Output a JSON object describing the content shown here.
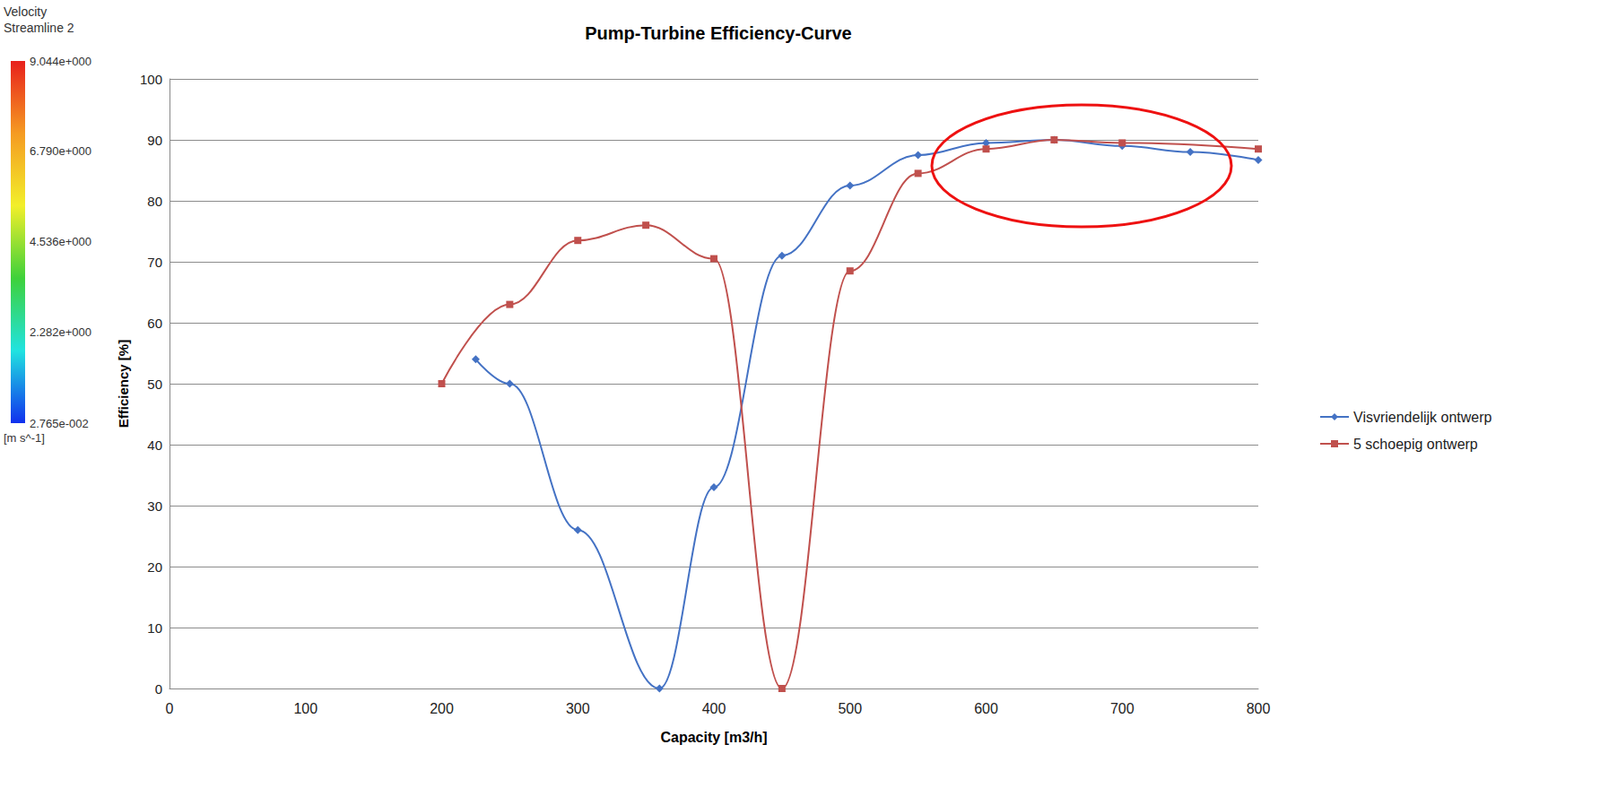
{
  "chart_data": {
    "type": "line",
    "title": "Pump-Turbine Efficiency-Curve",
    "x_label": "Capacity [m3/h]",
    "y_label": "Efficiency [%]",
    "xlim": [
      0,
      800
    ],
    "xticks": [
      0,
      100,
      200,
      300,
      400,
      500,
      600,
      700,
      800
    ],
    "ylim": [
      0,
      100
    ],
    "yticks": [
      0,
      10,
      20,
      30,
      40,
      50,
      60,
      70,
      80,
      90,
      100
    ],
    "grid": true,
    "legend": "right",
    "series": [
      {
        "name": "Visvriendelijk ontwerp",
        "color": "#4472c4",
        "marker": "diamond",
        "line_style": "smooth",
        "x": [
          225,
          250,
          300,
          360,
          400,
          450,
          500,
          550,
          600,
          650,
          700,
          750,
          800
        ],
        "values": [
          54,
          50,
          26,
          0,
          33,
          71,
          82.5,
          87.5,
          89.5,
          90,
          89,
          88,
          86.7
        ]
      },
      {
        "name": "5 schoepig ontwerp",
        "color": "#c0504d",
        "marker": "square",
        "line_style": "smooth",
        "x": [
          200,
          250,
          300,
          350,
          400,
          450,
          500,
          550,
          600,
          650,
          700,
          800
        ],
        "values": [
          50,
          63,
          73.5,
          76,
          70.5,
          0,
          68.5,
          84.5,
          88.5,
          90,
          89.5,
          88.5
        ]
      }
    ],
    "colorbar": {
      "title": [
        "Velocity",
        "Streamline 2"
      ],
      "range": [
        0.02765,
        9.044
      ],
      "ticks": [
        {
          "value": 9.044,
          "label": "9.044e+000"
        },
        {
          "value": 6.79,
          "label": "6.790e+000"
        },
        {
          "value": 4.536,
          "label": "4.536e+000"
        },
        {
          "value": 2.282,
          "label": "2.282e+000"
        },
        {
          "value": 0.02765,
          "label": "2.765e-002"
        }
      ],
      "unit": "[m s^-1]"
    }
  }
}
